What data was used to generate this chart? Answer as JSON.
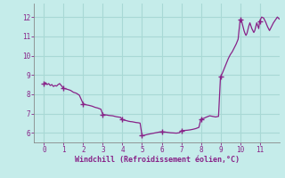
{
  "title": "",
  "xlabel": "Windchill (Refroidissement éolien,°C)",
  "ylabel": "",
  "xlim": [
    -0.5,
    12.0
  ],
  "ylim": [
    5.5,
    12.7
  ],
  "xticks": [
    0,
    1,
    2,
    3,
    4,
    5,
    6,
    7,
    8,
    9,
    10,
    11
  ],
  "yticks": [
    6,
    7,
    8,
    9,
    10,
    11,
    12
  ],
  "background_color": "#c5ecea",
  "grid_color": "#a8d8d5",
  "line_color": "#882288",
  "marker_color": "#882288",
  "x": [
    0.0,
    0.08,
    0.16,
    0.24,
    0.32,
    0.4,
    0.48,
    0.56,
    0.64,
    0.72,
    0.8,
    1.0,
    1.1,
    1.2,
    1.35,
    1.5,
    1.65,
    1.8,
    2.0,
    2.15,
    2.3,
    2.45,
    2.6,
    2.75,
    2.9,
    3.0,
    3.1,
    3.2,
    3.3,
    3.5,
    3.7,
    3.9,
    4.0,
    4.1,
    4.2,
    4.3,
    4.4,
    4.5,
    4.6,
    4.7,
    4.8,
    4.9,
    5.0,
    5.15,
    5.3,
    5.45,
    5.6,
    5.75,
    5.9,
    6.0,
    6.15,
    6.3,
    6.45,
    6.6,
    6.75,
    6.9,
    7.0,
    7.15,
    7.3,
    7.45,
    7.6,
    7.75,
    7.9,
    8.0,
    8.15,
    8.3,
    8.45,
    8.6,
    8.75,
    8.9,
    9.0,
    9.1,
    9.2,
    9.3,
    9.4,
    9.5,
    9.6,
    9.7,
    9.8,
    9.9,
    10.0,
    10.05,
    10.1,
    10.15,
    10.2,
    10.25,
    10.3,
    10.35,
    10.4,
    10.45,
    10.5,
    10.55,
    10.6,
    10.65,
    10.7,
    10.75,
    10.8,
    10.85,
    10.9,
    10.95,
    11.0,
    11.1,
    11.2,
    11.3,
    11.4,
    11.5,
    11.6,
    11.7,
    11.8,
    11.9,
    12.0
  ],
  "y": [
    8.55,
    8.6,
    8.5,
    8.55,
    8.45,
    8.5,
    8.4,
    8.45,
    8.42,
    8.5,
    8.55,
    8.3,
    8.28,
    8.25,
    8.2,
    8.1,
    8.05,
    7.95,
    7.5,
    7.45,
    7.42,
    7.38,
    7.32,
    7.28,
    7.22,
    6.95,
    6.93,
    6.92,
    6.9,
    6.88,
    6.83,
    6.8,
    6.68,
    6.65,
    6.63,
    6.6,
    6.58,
    6.57,
    6.55,
    6.53,
    6.52,
    6.5,
    5.85,
    5.88,
    5.92,
    5.95,
    5.98,
    6.01,
    6.04,
    6.05,
    6.04,
    6.02,
    6.0,
    5.99,
    5.98,
    6.0,
    6.1,
    6.12,
    6.13,
    6.15,
    6.18,
    6.22,
    6.28,
    6.7,
    6.75,
    6.82,
    6.88,
    6.85,
    6.82,
    6.85,
    8.9,
    9.1,
    9.35,
    9.6,
    9.85,
    10.05,
    10.2,
    10.4,
    10.6,
    10.85,
    11.85,
    11.9,
    11.7,
    11.5,
    11.3,
    11.15,
    11.05,
    11.15,
    11.35,
    11.55,
    11.7,
    11.55,
    11.4,
    11.3,
    11.2,
    11.3,
    11.5,
    11.7,
    11.55,
    11.4,
    11.8,
    12.0,
    11.95,
    11.75,
    11.5,
    11.3,
    11.5,
    11.7,
    11.85,
    12.0,
    11.9
  ],
  "marker_x": [
    0.0,
    1.0,
    2.0,
    3.0,
    4.0,
    5.0,
    6.0,
    7.0,
    8.0,
    9.0,
    10.0,
    11.0
  ],
  "marker_y": [
    8.55,
    8.3,
    7.5,
    6.95,
    6.68,
    5.85,
    6.05,
    6.1,
    6.7,
    8.9,
    11.85,
    11.8
  ]
}
